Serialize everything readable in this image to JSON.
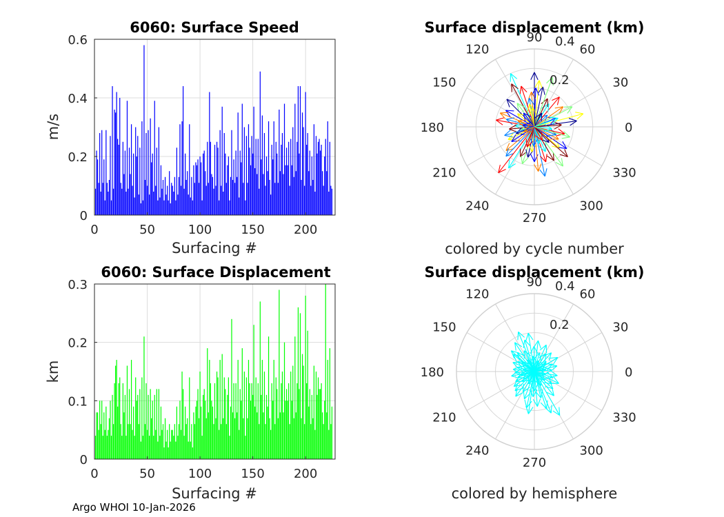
{
  "chart_data": [
    {
      "type": "bar",
      "title": "6060: Surface Speed",
      "xlabel": "Surfacing #",
      "ylabel": "m/s",
      "xlim": [
        0,
        228
      ],
      "ylim": [
        0,
        0.6
      ],
      "xticks": [
        0,
        50,
        100,
        150,
        200
      ],
      "yticks": [
        0,
        0.2,
        0.4,
        0.6
      ],
      "xtick_labels": [
        "0",
        "50",
        "100",
        "150",
        "200"
      ],
      "ytick_labels": [
        "0",
        "0.2",
        "0.4",
        "0.6"
      ],
      "color": "#0000ff",
      "grid": true,
      "values": [
        0.09,
        0.22,
        0.19,
        0.11,
        0.28,
        0.08,
        0.29,
        0.11,
        0.19,
        0.05,
        0.29,
        0.11,
        0.08,
        0.12,
        0.27,
        0.05,
        0.44,
        0.09,
        0.36,
        0.35,
        0.42,
        0.26,
        0.24,
        0.4,
        0.11,
        0.09,
        0.25,
        0.14,
        0.22,
        0.08,
        0.39,
        0.09,
        0.23,
        0.14,
        0.31,
        0.1,
        0.21,
        0.06,
        0.3,
        0.2,
        0.27,
        0.07,
        0.23,
        0.04,
        0.32,
        0.05,
        0.58,
        0.12,
        0.28,
        0.1,
        0.29,
        0.07,
        0.33,
        0.18,
        0.21,
        0.08,
        0.39,
        0.1,
        0.23,
        0.05,
        0.3,
        0.06,
        0.17,
        0.09,
        0.12,
        0.05,
        0.13,
        0.07,
        0.1,
        0.05,
        0.15,
        0.04,
        0.11,
        0.1,
        0.08,
        0.13,
        0.05,
        0.23,
        0.07,
        0.13,
        0.31,
        0.1,
        0.32,
        0.44,
        0.09,
        0.21,
        0.12,
        0.15,
        0.07,
        0.31,
        0.06,
        0.13,
        0.05,
        0.17,
        0.11,
        0.18,
        0.17,
        0.19,
        0.11,
        0.2,
        0.18,
        0.05,
        0.21,
        0.22,
        0.15,
        0.1,
        0.25,
        0.11,
        0.42,
        0.25,
        0.14,
        0.13,
        0.09,
        0.24,
        0.1,
        0.25,
        0.23,
        0.05,
        0.29,
        0.1,
        0.37,
        0.08,
        0.28,
        0.21,
        0.11,
        0.17,
        0.2,
        0.05,
        0.13,
        0.29,
        0.12,
        0.19,
        0.11,
        0.22,
        0.13,
        0.35,
        0.06,
        0.22,
        0.18,
        0.38,
        0.11,
        0.3,
        0.05,
        0.27,
        0.11,
        0.31,
        0.23,
        0.17,
        0.27,
        0.21,
        0.37,
        0.16,
        0.26,
        0.14,
        0.26,
        0.09,
        0.49,
        0.19,
        0.34,
        0.14,
        0.28,
        0.1,
        0.2,
        0.15,
        0.32,
        0.12,
        0.07,
        0.24,
        0.19,
        0.32,
        0.11,
        0.25,
        0.21,
        0.11,
        0.36,
        0.15,
        0.24,
        0.28,
        0.14,
        0.38,
        0.17,
        0.23,
        0.17,
        0.25,
        0.1,
        0.26,
        0.17,
        0.3,
        0.13,
        0.38,
        0.15,
        0.25,
        0.44,
        0.21,
        0.44,
        0.12,
        0.35,
        0.3,
        0.1,
        0.42,
        0.24,
        0.28,
        0.15,
        0.22,
        0.1,
        0.2,
        0.12,
        0.31,
        0.08,
        0.27,
        0.21,
        0.25,
        0.26,
        0.22,
        0.24,
        0.15,
        0.1,
        0.2,
        0.26,
        0.15,
        0.32,
        0.08,
        0.25,
        0.1,
        0.09
      ]
    },
    {
      "type": "bar",
      "title": "6060: Surface Displacement",
      "xlabel": "Surfacing #",
      "ylabel": "km",
      "xlim": [
        0,
        228
      ],
      "ylim": [
        0,
        0.3
      ],
      "xticks": [
        0,
        50,
        100,
        150,
        200
      ],
      "yticks": [
        0,
        0.1,
        0.2,
        0.3
      ],
      "xtick_labels": [
        "0",
        "50",
        "100",
        "150",
        "200"
      ],
      "ytick_labels": [
        "0",
        "0.1",
        "0.2",
        "0.3"
      ],
      "color": "#00ff00",
      "grid": true,
      "values": [
        0.04,
        0.08,
        0.08,
        0.05,
        0.1,
        0.06,
        0.1,
        0.04,
        0.08,
        0.05,
        0.09,
        0.04,
        0.05,
        0.07,
        0.1,
        0.04,
        0.11,
        0.06,
        0.13,
        0.16,
        0.17,
        0.09,
        0.13,
        0.14,
        0.06,
        0.04,
        0.13,
        0.08,
        0.11,
        0.04,
        0.16,
        0.06,
        0.12,
        0.06,
        0.17,
        0.05,
        0.09,
        0.04,
        0.14,
        0.1,
        0.11,
        0.06,
        0.12,
        0.03,
        0.14,
        0.04,
        0.21,
        0.06,
        0.13,
        0.05,
        0.11,
        0.04,
        0.12,
        0.07,
        0.1,
        0.04,
        0.11,
        0.05,
        0.12,
        0.03,
        0.12,
        0.04,
        0.09,
        0.05,
        0.06,
        0.02,
        0.07,
        0.03,
        0.05,
        0.02,
        0.06,
        0.03,
        0.05,
        0.05,
        0.04,
        0.06,
        0.03,
        0.09,
        0.04,
        0.06,
        0.1,
        0.05,
        0.15,
        0.12,
        0.04,
        0.09,
        0.06,
        0.07,
        0.03,
        0.14,
        0.03,
        0.06,
        0.02,
        0.08,
        0.06,
        0.09,
        0.1,
        0.12,
        0.07,
        0.15,
        0.09,
        0.04,
        0.11,
        0.12,
        0.1,
        0.07,
        0.19,
        0.08,
        0.17,
        0.13,
        0.1,
        0.09,
        0.06,
        0.13,
        0.07,
        0.15,
        0.14,
        0.05,
        0.17,
        0.06,
        0.18,
        0.07,
        0.14,
        0.12,
        0.06,
        0.11,
        0.14,
        0.04,
        0.09,
        0.24,
        0.08,
        0.13,
        0.07,
        0.13,
        0.08,
        0.17,
        0.05,
        0.12,
        0.1,
        0.19,
        0.07,
        0.15,
        0.04,
        0.14,
        0.07,
        0.17,
        0.13,
        0.1,
        0.13,
        0.11,
        0.23,
        0.09,
        0.14,
        0.08,
        0.13,
        0.06,
        0.27,
        0.11,
        0.17,
        0.08,
        0.15,
        0.06,
        0.11,
        0.09,
        0.21,
        0.07,
        0.05,
        0.13,
        0.1,
        0.17,
        0.06,
        0.14,
        0.12,
        0.07,
        0.29,
        0.08,
        0.13,
        0.15,
        0.08,
        0.2,
        0.1,
        0.12,
        0.1,
        0.13,
        0.06,
        0.15,
        0.1,
        0.16,
        0.07,
        0.21,
        0.08,
        0.13,
        0.26,
        0.12,
        0.25,
        0.07,
        0.18,
        0.16,
        0.06,
        0.28,
        0.13,
        0.22,
        0.09,
        0.12,
        0.06,
        0.11,
        0.07,
        0.16,
        0.05,
        0.15,
        0.11,
        0.14,
        0.12,
        0.12,
        0.13,
        0.08,
        0.06,
        0.1,
        0.3,
        0.08,
        0.17,
        0.05,
        0.19,
        0.06,
        0.09
      ]
    },
    {
      "type": "polar-compass",
      "title": "Surface displacement (km)",
      "caption": "colored by cycle number",
      "rlim": [
        0,
        0.4
      ],
      "rticks": [
        0.2,
        0.4
      ],
      "rtick_labels": [
        "0.2",
        "0.4"
      ],
      "theta_ticks": [
        0,
        30,
        60,
        90,
        120,
        150,
        180,
        210,
        240,
        270,
        300,
        330
      ],
      "theta_tick_labels": [
        "0",
        "30",
        "60",
        "90",
        "120",
        "150",
        "180",
        "210",
        "240",
        "270",
        "300",
        "330"
      ],
      "colormap": [
        "#00008f",
        "#0000ff",
        "#0080ff",
        "#00ffff",
        "#80ff80",
        "#ffff00",
        "#ff8000",
        "#ff0000",
        "#800000"
      ],
      "vectors_deg_km": [
        [
          8,
          0.22
        ],
        [
          15,
          0.26
        ],
        [
          22,
          0.12
        ],
        [
          35,
          0.18
        ],
        [
          42,
          0.09
        ],
        [
          50,
          0.2
        ],
        [
          58,
          0.14
        ],
        [
          65,
          0.16
        ],
        [
          70,
          0.27
        ],
        [
          78,
          0.21
        ],
        [
          84,
          0.24
        ],
        [
          88,
          0.2
        ],
        [
          95,
          0.18
        ],
        [
          100,
          0.15
        ],
        [
          108,
          0.22
        ],
        [
          114,
          0.3
        ],
        [
          118,
          0.25
        ],
        [
          126,
          0.15
        ],
        [
          135,
          0.2
        ],
        [
          142,
          0.11
        ],
        [
          150,
          0.17
        ],
        [
          158,
          0.19
        ],
        [
          165,
          0.15
        ],
        [
          170,
          0.2
        ],
        [
          176,
          0.1
        ],
        [
          185,
          0.13
        ],
        [
          192,
          0.07
        ],
        [
          200,
          0.1
        ],
        [
          206,
          0.15
        ],
        [
          213,
          0.14
        ],
        [
          220,
          0.19
        ],
        [
          226,
          0.21
        ],
        [
          232,
          0.3
        ],
        [
          238,
          0.25
        ],
        [
          245,
          0.17
        ],
        [
          252,
          0.2
        ],
        [
          258,
          0.16
        ],
        [
          264,
          0.13
        ],
        [
          270,
          0.18
        ],
        [
          275,
          0.23
        ],
        [
          282,
          0.26
        ],
        [
          288,
          0.19
        ],
        [
          294,
          0.14
        ],
        [
          300,
          0.2
        ],
        [
          306,
          0.25
        ],
        [
          313,
          0.11
        ],
        [
          320,
          0.17
        ],
        [
          326,
          0.2
        ],
        [
          333,
          0.14
        ],
        [
          340,
          0.12
        ],
        [
          347,
          0.16
        ],
        [
          354,
          0.09
        ],
        [
          4,
          0.14
        ],
        [
          28,
          0.22
        ],
        [
          62,
          0.08
        ],
        [
          96,
          0.1
        ],
        [
          128,
          0.09
        ],
        [
          160,
          0.09
        ],
        [
          196,
          0.16
        ],
        [
          250,
          0.11
        ],
        [
          286,
          0.09
        ],
        [
          318,
          0.23
        ],
        [
          344,
          0.19
        ],
        [
          90,
          0.28
        ],
        [
          102,
          0.12
        ],
        [
          172,
          0.06
        ],
        [
          205,
          0.06
        ],
        [
          268,
          0.1
        ],
        [
          300,
          0.08
        ],
        [
          20,
          0.13
        ]
      ]
    },
    {
      "type": "polar-compass",
      "title": "Surface displacement (km)",
      "caption": "colored by hemisphere",
      "rlim": [
        0,
        0.4
      ],
      "rticks": [
        0.2,
        0.4
      ],
      "rtick_labels": [
        "0.2",
        "0.4"
      ],
      "theta_ticks": [
        0,
        30,
        60,
        90,
        120,
        150,
        180,
        210,
        240,
        270,
        300,
        330
      ],
      "theta_tick_labels": [
        "0",
        "30",
        "60",
        "90",
        "120",
        "150",
        "180",
        "210",
        "240",
        "270",
        "300",
        "330"
      ],
      "color": "#00ffff",
      "vectors_deg_km": [
        [
          5,
          0.09
        ],
        [
          14,
          0.12
        ],
        [
          22,
          0.1
        ],
        [
          31,
          0.14
        ],
        [
          40,
          0.08
        ],
        [
          48,
          0.13
        ],
        [
          57,
          0.11
        ],
        [
          66,
          0.15
        ],
        [
          75,
          0.1
        ],
        [
          83,
          0.16
        ],
        [
          91,
          0.13
        ],
        [
          99,
          0.2
        ],
        [
          107,
          0.17
        ],
        [
          116,
          0.12
        ],
        [
          124,
          0.18
        ],
        [
          132,
          0.13
        ],
        [
          141,
          0.14
        ],
        [
          149,
          0.1
        ],
        [
          157,
          0.12
        ],
        [
          166,
          0.09
        ],
        [
          174,
          0.11
        ],
        [
          183,
          0.1
        ],
        [
          191,
          0.12
        ],
        [
          199,
          0.09
        ],
        [
          208,
          0.11
        ],
        [
          216,
          0.13
        ],
        [
          225,
          0.14
        ],
        [
          233,
          0.16
        ],
        [
          241,
          0.12
        ],
        [
          250,
          0.15
        ],
        [
          258,
          0.19
        ],
        [
          267,
          0.13
        ],
        [
          275,
          0.18
        ],
        [
          284,
          0.14
        ],
        [
          292,
          0.23
        ],
        [
          300,
          0.26
        ],
        [
          309,
          0.16
        ],
        [
          317,
          0.13
        ],
        [
          325,
          0.11
        ],
        [
          334,
          0.14
        ],
        [
          342,
          0.1
        ],
        [
          350,
          0.12
        ],
        [
          10,
          0.06
        ],
        [
          36,
          0.07
        ],
        [
          70,
          0.06
        ],
        [
          95,
          0.08
        ],
        [
          120,
          0.07
        ],
        [
          145,
          0.08
        ],
        [
          170,
          0.06
        ],
        [
          195,
          0.07
        ],
        [
          220,
          0.08
        ],
        [
          245,
          0.07
        ],
        [
          270,
          0.1
        ],
        [
          295,
          0.08
        ],
        [
          320,
          0.07
        ],
        [
          345,
          0.06
        ],
        [
          112,
          0.22
        ],
        [
          138,
          0.16
        ],
        [
          262,
          0.22
        ],
        [
          288,
          0.2
        ]
      ]
    }
  ],
  "footer": {
    "text": "Argo WHOI 10-Jan-2026"
  }
}
